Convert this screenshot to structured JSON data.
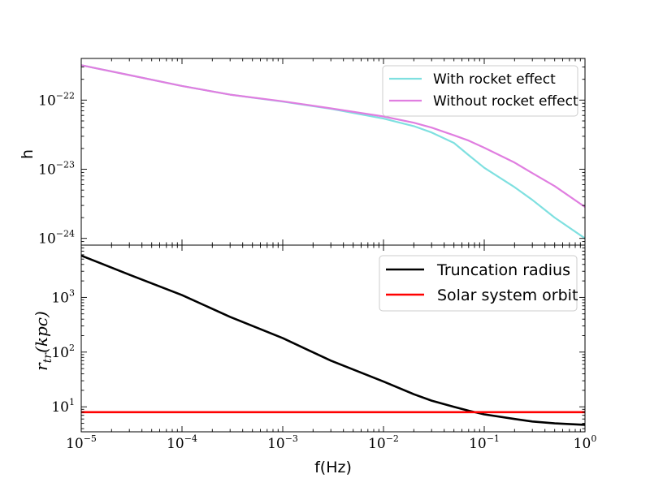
{
  "chart_data": [
    {
      "type": "line",
      "panel": "top",
      "xlabel": "",
      "ylabel": "h",
      "xscale": "log",
      "yscale": "log",
      "xlim": [
        1e-05,
        1
      ],
      "ylim": [
        8e-25,
        4e-22
      ],
      "yticks": [
        {
          "base": "10",
          "exp": "−22",
          "value": 1e-22
        },
        {
          "base": "10",
          "exp": "−23",
          "value": 1e-23
        },
        {
          "base": "10",
          "exp": "−24",
          "value": 1e-24
        }
      ],
      "legend_position": "top-right",
      "series": [
        {
          "name": "With rocket effect",
          "color": "#7fe0e0",
          "x": [
            1e-05,
            3e-05,
            0.0001,
            0.0003,
            0.001,
            0.003,
            0.01,
            0.02,
            0.03,
            0.05,
            0.07,
            0.1,
            0.2,
            0.3,
            0.5,
            1
          ],
          "y": [
            3.2e-22,
            2.3e-22,
            1.6e-22,
            1.2e-22,
            9.5e-23,
            7.5e-23,
            5.4e-23,
            4.2e-23,
            3.4e-23,
            2.4e-23,
            1.6e-23,
            1.05e-23,
            5.5e-24,
            3.6e-24,
            2e-24,
            1e-24
          ]
        },
        {
          "name": "Without rocket effect",
          "color": "#e07ee0",
          "x": [
            1e-05,
            3e-05,
            0.0001,
            0.0003,
            0.001,
            0.003,
            0.01,
            0.02,
            0.03,
            0.05,
            0.07,
            0.1,
            0.2,
            0.3,
            0.5,
            1
          ],
          "y": [
            3.2e-22,
            2.3e-22,
            1.6e-22,
            1.2e-22,
            9.6e-23,
            7.6e-23,
            5.8e-23,
            4.7e-23,
            4e-23,
            3.1e-23,
            2.6e-23,
            2.05e-23,
            1.25e-23,
            8.8e-24,
            5.7e-24,
            2.85e-24
          ]
        }
      ]
    },
    {
      "type": "line",
      "panel": "bottom",
      "xlabel": "f(Hz)",
      "ylabel": "r_tr(kpc)",
      "ylabel_main": "r",
      "ylabel_sub": "tr",
      "ylabel_tail": "(kpc)",
      "xscale": "log",
      "yscale": "log",
      "xlim": [
        1e-05,
        1
      ],
      "ylim": [
        3.5,
        9000
      ],
      "xticks": [
        {
          "base": "10",
          "exp": "−5",
          "value": 1e-05
        },
        {
          "base": "10",
          "exp": "−4",
          "value": 0.0001
        },
        {
          "base": "10",
          "exp": "−3",
          "value": 0.001
        },
        {
          "base": "10",
          "exp": "−2",
          "value": 0.01
        },
        {
          "base": "10",
          "exp": "−1",
          "value": 0.1
        },
        {
          "base": "10",
          "exp": "0",
          "value": 1
        }
      ],
      "yticks": [
        {
          "base": "10",
          "exp": "3",
          "value": 1000
        },
        {
          "base": "10",
          "exp": "2",
          "value": 100
        },
        {
          "base": "10",
          "exp": "1",
          "value": 10
        }
      ],
      "legend_position": "top-right",
      "series": [
        {
          "name": "Truncation radius",
          "color": "#000000",
          "x": [
            1e-05,
            3e-05,
            0.0001,
            0.0003,
            0.001,
            0.003,
            0.01,
            0.02,
            0.03,
            0.05,
            0.07,
            0.1,
            0.2,
            0.3,
            0.5,
            1
          ],
          "y": [
            5800,
            2600,
            1100,
            440,
            180,
            70,
            29,
            17,
            13,
            10,
            8.5,
            7.3,
            6.0,
            5.4,
            5.0,
            4.7
          ]
        },
        {
          "name": "Solar system orbit",
          "color": "#ff0000",
          "x": [
            1e-05,
            1
          ],
          "y": [
            8,
            8
          ]
        }
      ]
    }
  ]
}
